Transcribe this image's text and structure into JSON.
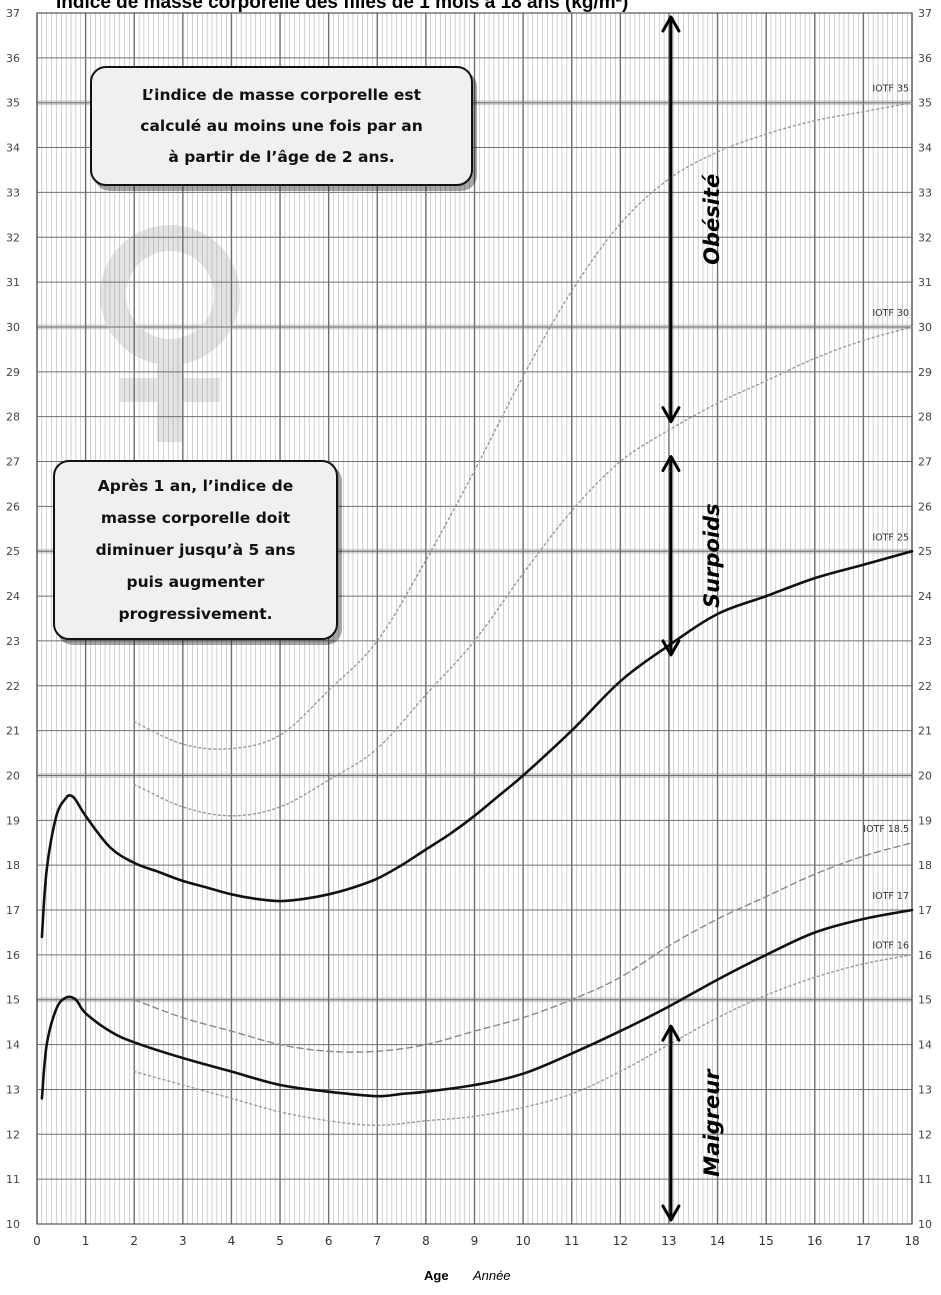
{
  "chart_data": {
    "type": "line",
    "title": "Indice de masse corporelle des filles de 1 mois à 18 ans (kg/m²)",
    "xlabel": "Age",
    "xlabel_unit": "Année",
    "ylabel": "",
    "xlim": [
      0,
      18
    ],
    "ylim": [
      10,
      37
    ],
    "x_ticks": [
      0,
      1,
      2,
      3,
      4,
      5,
      6,
      7,
      8,
      9,
      10,
      11,
      12,
      13,
      14,
      15,
      16,
      17,
      18
    ],
    "y_ticks": [
      10,
      11,
      12,
      13,
      14,
      15,
      16,
      17,
      18,
      19,
      20,
      21,
      22,
      23,
      24,
      25,
      26,
      27,
      28,
      29,
      30,
      31,
      32,
      33,
      34,
      35,
      36,
      37
    ],
    "grid": true,
    "series": [
      {
        "name": "",
        "style": "solid",
        "color": "#111111",
        "x": [
          0.1,
          0.2,
          0.4,
          0.6,
          0.7,
          0.8,
          1,
          1.5,
          2,
          2.5,
          3,
          3.5,
          4,
          4.5,
          5,
          5.5,
          6,
          6.5,
          7,
          7.5,
          8,
          8.5,
          9,
          9.5,
          10,
          11,
          12,
          13,
          14,
          15,
          16,
          17,
          18
        ],
        "y": [
          16.4,
          17.9,
          19.1,
          19.5,
          19.55,
          19.45,
          19.1,
          18.4,
          18.05,
          17.85,
          17.65,
          17.5,
          17.35,
          17.25,
          17.2,
          17.25,
          17.35,
          17.5,
          17.7,
          18.0,
          18.35,
          18.7,
          19.1,
          19.55,
          20.0,
          21.0,
          22.1,
          22.9,
          23.6,
          24.0,
          24.4,
          24.7,
          25.0
        ]
      },
      {
        "name": "",
        "style": "solid",
        "color": "#111111",
        "x": [
          0.1,
          0.2,
          0.4,
          0.6,
          0.8,
          1,
          1.5,
          2,
          3,
          4,
          5,
          6,
          7,
          7.5,
          8,
          9,
          10,
          11,
          12,
          13,
          14,
          15,
          16,
          17,
          18
        ],
        "y": [
          12.8,
          14.0,
          14.8,
          15.05,
          15.0,
          14.7,
          14.3,
          14.05,
          13.7,
          13.4,
          13.1,
          12.95,
          12.85,
          12.9,
          12.95,
          13.1,
          13.35,
          13.8,
          14.3,
          14.85,
          15.45,
          16.0,
          16.5,
          16.8,
          17.0
        ]
      },
      {
        "name": "IOTF 35",
        "style": "dotted",
        "color": "#999999",
        "x": [
          2,
          3,
          4,
          5,
          6,
          7,
          8,
          9,
          10,
          11,
          12,
          13,
          14,
          15,
          16,
          17,
          18
        ],
        "y": [
          21.2,
          20.7,
          20.6,
          20.9,
          21.9,
          23.0,
          24.8,
          26.8,
          28.9,
          30.8,
          32.3,
          33.3,
          33.9,
          34.3,
          34.6,
          34.8,
          35.0
        ]
      },
      {
        "name": "IOTF 30",
        "style": "dotted",
        "color": "#999999",
        "x": [
          2,
          3,
          4,
          5,
          6,
          7,
          8,
          9,
          10,
          11,
          12,
          13,
          14,
          15,
          16,
          17,
          18
        ],
        "y": [
          19.8,
          19.3,
          19.1,
          19.3,
          19.9,
          20.6,
          21.8,
          23.0,
          24.5,
          25.9,
          27.0,
          27.7,
          28.3,
          28.8,
          29.3,
          29.7,
          30.0
        ]
      },
      {
        "name": "IOTF 18.5",
        "style": "dashed",
        "color": "#888888",
        "x": [
          2,
          3,
          4,
          5,
          6,
          7,
          8,
          9,
          10,
          11,
          12,
          13,
          14,
          15,
          16,
          17,
          18
        ],
        "y": [
          15.0,
          14.6,
          14.3,
          14.0,
          13.85,
          13.85,
          14.0,
          14.3,
          14.6,
          15.0,
          15.5,
          16.2,
          16.8,
          17.3,
          17.8,
          18.2,
          18.5
        ]
      },
      {
        "name": "IOTF 16",
        "style": "dotted",
        "color": "#999999",
        "x": [
          2,
          3,
          4,
          5,
          6,
          7,
          8,
          9,
          10,
          11,
          12,
          13,
          14,
          15,
          16,
          17,
          18
        ],
        "y": [
          13.4,
          13.1,
          12.8,
          12.5,
          12.3,
          12.2,
          12.3,
          12.4,
          12.6,
          12.9,
          13.4,
          14.0,
          14.6,
          15.1,
          15.5,
          15.8,
          16.0
        ]
      }
    ],
    "curve_labels": [
      "IOTF 35",
      "IOTF 30",
      "IOTF 25",
      "IOTF 18.5",
      "IOTF 17",
      "IOTF 16"
    ],
    "zones": [
      {
        "label": "Obésité",
        "from": 27.8,
        "to": 37
      },
      {
        "label": "Surpoids",
        "from": 22.6,
        "to": 27.2
      },
      {
        "label": "Maigreur",
        "from": 10,
        "to": 14.5
      }
    ],
    "zone_age": 13
  },
  "notes": {
    "top_box": [
      "L’indice de masse corporelle est",
      "calculé au moins une fois par an",
      "à partir de l’âge de 2 ans."
    ],
    "mid_box": [
      "Après 1 an, l’indice de",
      "masse corporelle doit",
      "diminuer jusqu’à 5 ans",
      "puis augmenter",
      "progressivement."
    ]
  },
  "colors": {
    "grid": "#9a9a9a",
    "major_grid": "#6f6f6f",
    "band": "#d6d6d6",
    "watermark": "#e3e3e3"
  },
  "icons": {
    "watermark": "female-symbol-icon"
  }
}
